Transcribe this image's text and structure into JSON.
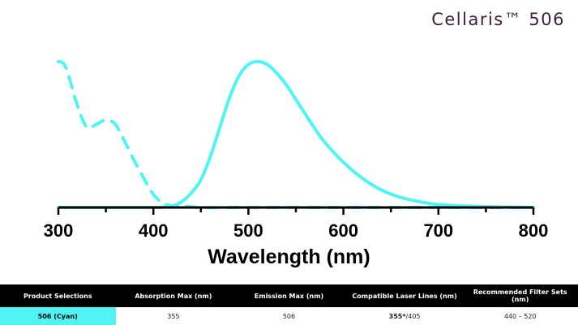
{
  "brand": {
    "title": "Cellaris™ 506"
  },
  "chart_data": {
    "type": "line",
    "title": "",
    "xlabel": "Wavelength (nm)",
    "ylabel": "",
    "xlim": [
      300,
      800
    ],
    "ylim": [
      0,
      1
    ],
    "xticks": [
      300,
      400,
      500,
      600,
      700,
      800
    ],
    "grid": false,
    "color": "#4ff5f5",
    "series": [
      {
        "style": "dashed",
        "x": [
          300,
          305,
          310,
          320,
          330,
          340,
          350,
          360,
          370,
          380,
          390,
          400,
          410,
          420,
          430,
          450,
          500,
          600,
          700,
          800
        ],
        "y": [
          1.0,
          0.99,
          0.92,
          0.7,
          0.55,
          0.57,
          0.6,
          0.57,
          0.45,
          0.32,
          0.2,
          0.09,
          0.03,
          0.01,
          0.01,
          0.0,
          0.0,
          0.0,
          0.0,
          0.0
        ]
      },
      {
        "style": "solid",
        "x": [
          300,
          400,
          410,
          420,
          430,
          440,
          450,
          460,
          470,
          480,
          490,
          500,
          510,
          520,
          530,
          540,
          550,
          560,
          570,
          580,
          600,
          620,
          640,
          660,
          680,
          700,
          740,
          780,
          800
        ],
        "y": [
          0.0,
          0.0,
          0.003,
          0.01,
          0.04,
          0.1,
          0.19,
          0.35,
          0.55,
          0.75,
          0.9,
          0.98,
          1.0,
          0.98,
          0.92,
          0.84,
          0.74,
          0.64,
          0.54,
          0.45,
          0.31,
          0.2,
          0.12,
          0.07,
          0.04,
          0.02,
          0.007,
          0.002,
          0.0
        ]
      }
    ]
  },
  "table": {
    "headers": [
      "Product Selections",
      "Absorption Max (nm)",
      "Emission Max (nm)",
      "Compatible Laser Lines (nm)",
      "Recommended Filter Sets (nm)"
    ],
    "row": {
      "product": "506 (Cyan)",
      "absorption": "355",
      "emission": "506",
      "laser_bold": "355*",
      "laser_rest": "/405",
      "filter": "440 – 520"
    },
    "selection_color": "#4ff5f5"
  }
}
